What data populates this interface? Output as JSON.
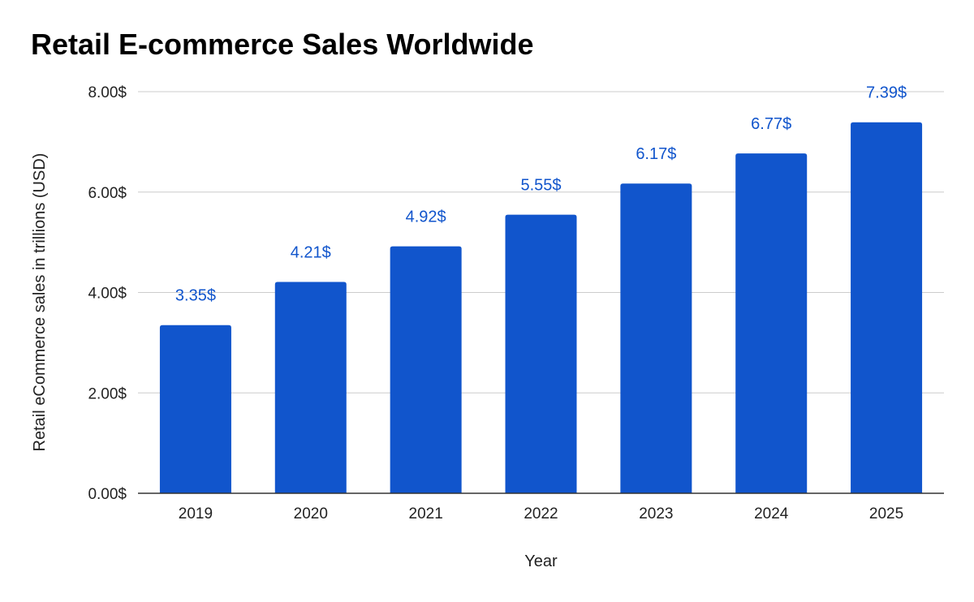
{
  "chart_data": {
    "type": "bar",
    "title": "Retail E-commerce Sales Worldwide",
    "xlabel": "Year",
    "ylabel": "Retail eCommerce sales in trillions (USD)",
    "categories": [
      "2019",
      "2020",
      "2021",
      "2022",
      "2023",
      "2024",
      "2025"
    ],
    "values": [
      3.35,
      4.21,
      4.92,
      5.55,
      6.17,
      6.77,
      7.39
    ],
    "data_labels": [
      "3.35$",
      "4.21$",
      "4.92$",
      "5.55$",
      "6.17$",
      "6.77$",
      "7.39$"
    ],
    "ylim": [
      0,
      8
    ],
    "yticks": [
      0,
      2,
      4,
      6,
      8
    ],
    "ytick_labels": [
      "0.00$",
      "2.00$",
      "4.00$",
      "6.00$",
      "8.00$"
    ],
    "grid": true,
    "legend": "none",
    "colors": {
      "bar": "#1155cc",
      "label": "#1155cc",
      "grid": "#cccccc",
      "axis": "#333333"
    }
  }
}
